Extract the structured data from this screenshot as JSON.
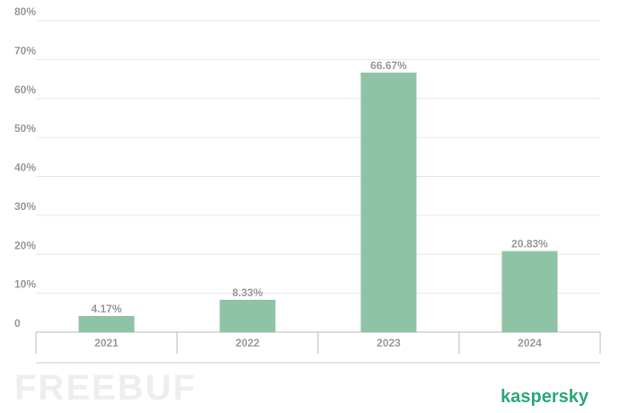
{
  "chart_data": {
    "type": "bar",
    "categories": [
      "2021",
      "2022",
      "2023",
      "2024"
    ],
    "values": [
      4.17,
      8.33,
      66.67,
      20.83
    ],
    "value_labels": [
      "4.17%",
      "8.33%",
      "66.67%",
      "20.83%"
    ],
    "color": "#8fc3a6",
    "ylim": [
      0,
      80
    ],
    "yticks": [
      0,
      {
        "value": 10,
        "label": "10%"
      },
      {
        "value": 20,
        "label": "20%"
      },
      {
        "value": 30,
        "label": "30%"
      },
      {
        "value": 40,
        "label": "40%"
      },
      {
        "value": 50,
        "label": "50%"
      },
      {
        "value": 60,
        "label": "60%"
      },
      {
        "value": 70,
        "label": "70%"
      },
      {
        "value": 80,
        "label": "80%"
      }
    ],
    "grid": true
  },
  "footer": {
    "watermark": "FREEBUF",
    "brand": "kaspersky"
  }
}
